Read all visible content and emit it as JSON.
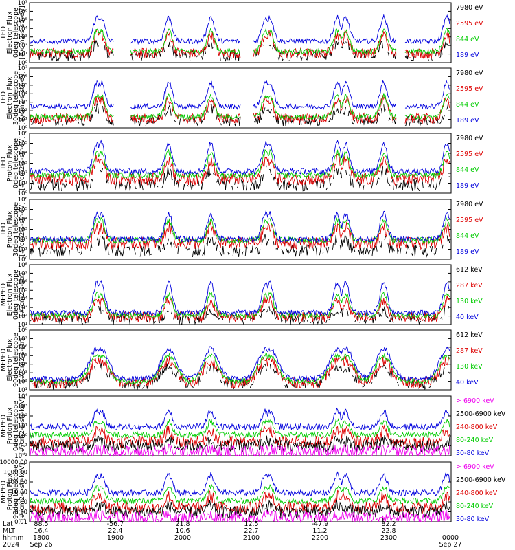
{
  "chart_data": {
    "type": "line",
    "x_axis": {
      "row_labels": [
        "Lat",
        "MLT",
        "hhmm",
        "2024"
      ],
      "columns": [
        {
          "Lat": "88.5",
          "MLT": "16.4",
          "hhmm": "1800",
          "date": "Sep 26"
        },
        {
          "Lat": "-56.7",
          "MLT": "22.4",
          "hhmm": "1900",
          "date": ""
        },
        {
          "Lat": "21.8",
          "MLT": "10.6",
          "hhmm": "2000",
          "date": ""
        },
        {
          "Lat": "12.5",
          "MLT": "22.7",
          "hhmm": "2100",
          "date": ""
        },
        {
          "Lat": "-47.9",
          "MLT": "11.2",
          "hhmm": "2200",
          "date": ""
        },
        {
          "Lat": "82.2",
          "MLT": "22.8",
          "hhmm": "2300",
          "date": ""
        },
        {
          "Lat": "",
          "MLT": "",
          "hhmm": "0000",
          "date": "Sep 27"
        }
      ]
    },
    "panels": [
      {
        "ylabel": [
          "TED",
          "Electron Flux",
          "0deg telescope",
          "[#/cm2-s-str-eV]"
        ],
        "yticks": [
          "10⁰",
          "10¹",
          "10²",
          "10³",
          "10⁴",
          "10⁵",
          "10⁶",
          "10⁷"
        ],
        "ylog": [
          0,
          7
        ],
        "legend": [
          {
            "name": "7980 eV",
            "color": "#000000"
          },
          {
            "name": "2595 eV",
            "color": "#dd0000"
          },
          {
            "name": "844 eV",
            "color": "#00cc00"
          },
          {
            "name": "189 eV",
            "color": "#0000dd"
          }
        ]
      },
      {
        "ylabel": [
          "TED",
          "Electron Flux",
          "30deg telescope",
          "[#/cm2-s-str-eV]"
        ],
        "yticks": [
          "10⁰",
          "10¹",
          "10²",
          "10³",
          "10⁴",
          "10⁵",
          "10⁶",
          "10⁷"
        ],
        "ylog": [
          0,
          7
        ],
        "legend": [
          {
            "name": "7980 eV",
            "color": "#000000"
          },
          {
            "name": "2595 eV",
            "color": "#dd0000"
          },
          {
            "name": "844 eV",
            "color": "#00cc00"
          },
          {
            "name": "189 eV",
            "color": "#0000dd"
          }
        ]
      },
      {
        "ylabel": [
          "TED",
          "Proton Flux",
          "0deg telescope",
          "[#/cm2-s-str-eV]"
        ],
        "yticks": [
          "10⁰",
          "10¹",
          "10²",
          "10³",
          "10⁴",
          "10⁵",
          "10⁶"
        ],
        "ylog": [
          0,
          6
        ],
        "legend": [
          {
            "name": "7980 eV",
            "color": "#000000"
          },
          {
            "name": "2595 eV",
            "color": "#dd0000"
          },
          {
            "name": "844 eV",
            "color": "#00cc00"
          },
          {
            "name": "189 eV",
            "color": "#0000dd"
          }
        ]
      },
      {
        "ylabel": [
          "TED",
          "Proton Flux",
          "30deg telescope",
          "[#/cm2-s-str-eV]"
        ],
        "yticks": [
          "10⁰",
          "10¹",
          "10²",
          "10³",
          "10⁴",
          "10⁵",
          "10⁶"
        ],
        "ylog": [
          0,
          6
        ],
        "legend": [
          {
            "name": "7980 eV",
            "color": "#000000"
          },
          {
            "name": "2595 eV",
            "color": "#dd0000"
          },
          {
            "name": "844 eV",
            "color": "#00cc00"
          },
          {
            "name": "189 eV",
            "color": "#0000dd"
          }
        ]
      },
      {
        "ylabel": [
          "MEPED",
          "Electron Flux",
          "0deg telescope",
          "[#/cm2-s-str]"
        ],
        "yticks": [
          "10¹",
          "10²",
          "10³",
          "10⁴",
          "10⁵",
          "10⁶",
          "10⁷",
          "10⁸"
        ],
        "ylog": [
          1,
          8
        ],
        "legend": [
          {
            "name": "612 keV",
            "color": "#000000"
          },
          {
            "name": "287 keV",
            "color": "#dd0000"
          },
          {
            "name": "130 keV",
            "color": "#00cc00"
          },
          {
            "name": "40 keV",
            "color": "#0000dd"
          }
        ]
      },
      {
        "ylabel": [
          "MEPED",
          "Electron Flux",
          "90deg telescope",
          "[#/cm2-s-str]"
        ],
        "yticks": [
          "10¹",
          "10²",
          "10³",
          "10⁴",
          "10⁵",
          "10⁶",
          "10⁷",
          "10⁸"
        ],
        "ylog": [
          1,
          8
        ],
        "legend": [
          {
            "name": "612 keV",
            "color": "#000000"
          },
          {
            "name": "287 keV",
            "color": "#dd0000"
          },
          {
            "name": "130 keV",
            "color": "#00cc00"
          },
          {
            "name": "40 keV",
            "color": "#0000dd"
          }
        ]
      },
      {
        "ylabel": [
          "MEPED",
          "Proton Flux",
          "0deg telescope",
          "[#/cm2-s-str-keV]"
        ],
        "yticks": [
          "10⁻²",
          "10⁻¹",
          "10⁰",
          "10¹",
          "10²",
          "10³",
          "10⁴"
        ],
        "ylog": [
          -2,
          4
        ],
        "legend": [
          {
            "name": "> 6900 keV",
            "color": "#ee00ee"
          },
          {
            "name": "2500-6900 keV",
            "color": "#000000"
          },
          {
            "name": "240-800 keV",
            "color": "#dd0000"
          },
          {
            "name": "80-240 keV",
            "color": "#00cc00"
          },
          {
            "name": "30-80 keV",
            "color": "#0000dd"
          }
        ]
      },
      {
        "ylabel": [
          "MEPED",
          "Proton Flux",
          "90deg telescope",
          "[#/cm2-s-str-keV]"
        ],
        "yticks": [
          "0.01",
          "0.10",
          "1.00",
          "10.00",
          "100.00",
          "1000.00",
          "10000.00"
        ],
        "ylog": [
          -2,
          4
        ],
        "legend": [
          {
            "name": "> 6900 keV",
            "color": "#ee00ee"
          },
          {
            "name": "2500-6900 keV",
            "color": "#000000"
          },
          {
            "name": "240-800 keV",
            "color": "#dd0000"
          },
          {
            "name": "80-240 keV",
            "color": "#00cc00"
          },
          {
            "name": "30-80 keV",
            "color": "#0000dd"
          }
        ]
      }
    ]
  }
}
